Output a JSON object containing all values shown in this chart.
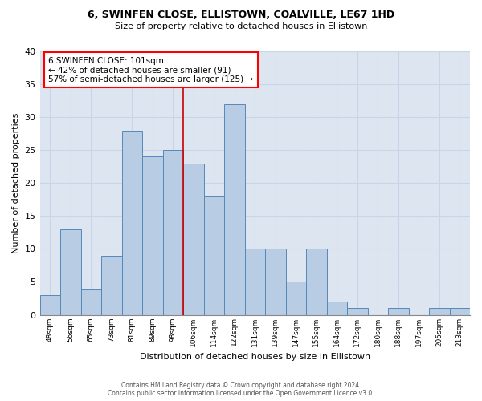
{
  "title1": "6, SWINFEN CLOSE, ELLISTOWN, COALVILLE, LE67 1HD",
  "title2": "Size of property relative to detached houses in Ellistown",
  "xlabel": "Distribution of detached houses by size in Ellistown",
  "ylabel": "Number of detached properties",
  "footer1": "Contains HM Land Registry data © Crown copyright and database right 2024.",
  "footer2": "Contains public sector information licensed under the Open Government Licence v3.0.",
  "annotation_line1": "6 SWINFEN CLOSE: 101sqm",
  "annotation_line2": "← 42% of detached houses are smaller (91)",
  "annotation_line3": "57% of semi-detached houses are larger (125) →",
  "bar_color": "#b8cce4",
  "bar_edge_color": "#5588bb",
  "grid_color": "#c8d4e8",
  "bg_color": "#dde6f0",
  "vline_color": "#cc0000",
  "categories": [
    "48sqm",
    "56sqm",
    "65sqm",
    "73sqm",
    "81sqm",
    "89sqm",
    "98sqm",
    "106sqm",
    "114sqm",
    "122sqm",
    "131sqm",
    "139sqm",
    "147sqm",
    "155sqm",
    "164sqm",
    "172sqm",
    "180sqm",
    "188sqm",
    "197sqm",
    "205sqm",
    "213sqm"
  ],
  "values": [
    3,
    13,
    4,
    9,
    28,
    24,
    25,
    23,
    18,
    32,
    10,
    10,
    5,
    10,
    2,
    1,
    0,
    1,
    0,
    1,
    1
  ],
  "bar_width": 1.0,
  "ylim": [
    0,
    40
  ],
  "yticks": [
    0,
    5,
    10,
    15,
    20,
    25,
    30,
    35,
    40
  ],
  "vline_bin_index": 6
}
